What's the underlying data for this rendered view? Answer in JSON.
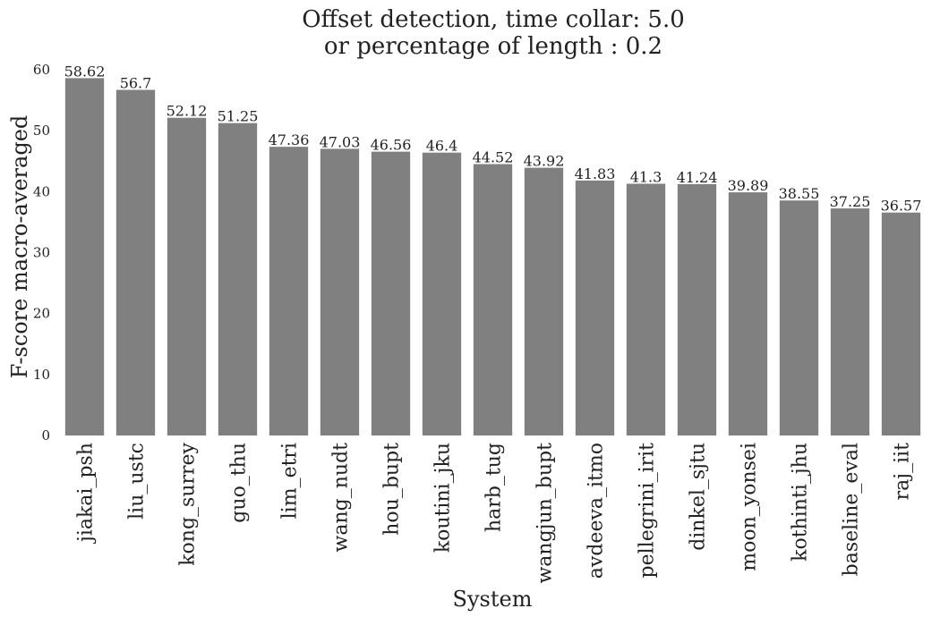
{
  "chart_data": {
    "type": "bar",
    "title_lines": [
      "Offset detection, time collar: 5.0",
      "or percentage of length : 0.2"
    ],
    "xlabel": "System",
    "ylabel": "F-score macro-averaged",
    "ylim": [
      0,
      60
    ],
    "yticks": [
      0,
      10,
      20,
      30,
      40,
      50,
      60
    ],
    "categories": [
      "jiakai_psh",
      "liu_ustc",
      "kong_surrey",
      "guo_thu",
      "lim_etri",
      "wang_nudt",
      "hou_bupt",
      "koutini_jku",
      "harb_tug",
      "wangjun_bupt",
      "avdeeva_itmo",
      "pellegrini_irit",
      "dinkel_sjtu",
      "moon_yonsei",
      "kothinti_jhu",
      "baseline_eval",
      "raj_iit"
    ],
    "values": [
      58.62,
      56.7,
      52.12,
      51.25,
      47.36,
      47.03,
      46.56,
      46.4,
      44.52,
      43.92,
      41.83,
      41.3,
      41.24,
      39.89,
      38.55,
      37.25,
      36.57
    ],
    "value_labels": [
      "58.62",
      "56.7",
      "52.12",
      "51.25",
      "47.36",
      "47.03",
      "46.56",
      "46.4",
      "44.52",
      "43.92",
      "41.83",
      "41.3",
      "41.24",
      "39.89",
      "38.55",
      "37.25",
      "36.57"
    ],
    "bar_color": "#808080",
    "grid": false,
    "legend": "none"
  }
}
